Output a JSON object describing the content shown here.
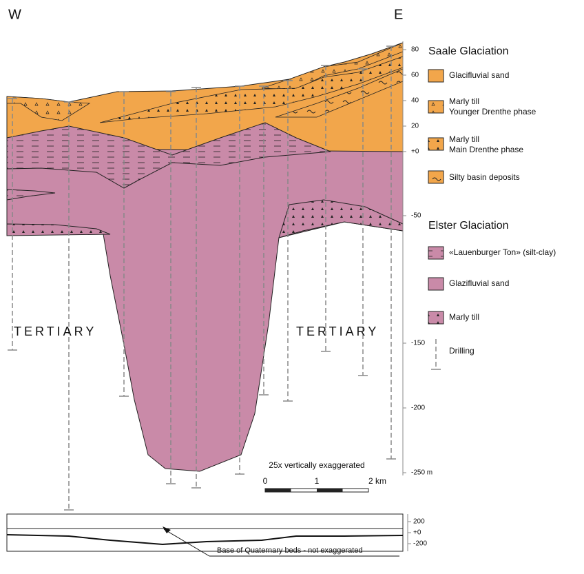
{
  "directions": {
    "west": "W",
    "east": "E"
  },
  "depth_axis": {
    "ticks": [
      "80",
      "60",
      "40",
      "20",
      "+0",
      "-50",
      "-150",
      "-200",
      "-250 m"
    ]
  },
  "labels": {
    "tertiary_west": "TERTIARY",
    "tertiary_east": "TERTIARY",
    "exaggeration": "25x vertically exaggerated"
  },
  "scale_bar": {
    "ticks": [
      "0",
      "1",
      "2 km"
    ]
  },
  "legend": {
    "saale": {
      "title": "Saale Glaciation",
      "items": [
        {
          "lines": [
            "Glacifluvial sand"
          ]
        },
        {
          "lines": [
            "Marly till",
            "Younger Drenthe phase"
          ]
        },
        {
          "lines": [
            "Marly till",
            "Main Drenthe phase"
          ]
        },
        {
          "lines": [
            "Silty basin deposits"
          ]
        }
      ]
    },
    "elster": {
      "title": "Elster Glaciation",
      "items": [
        {
          "lines": [
            "«Lauenburger Ton» (silt-clay)"
          ]
        },
        {
          "lines": [
            "Glazifluvial sand"
          ]
        },
        {
          "lines": [
            "Marly till"
          ]
        }
      ]
    },
    "drilling": "Drilling"
  },
  "inset": {
    "ticks": [
      "200",
      "+0",
      "-200"
    ],
    "caption": "Base of Quaternary beds - not exaggerated"
  }
}
